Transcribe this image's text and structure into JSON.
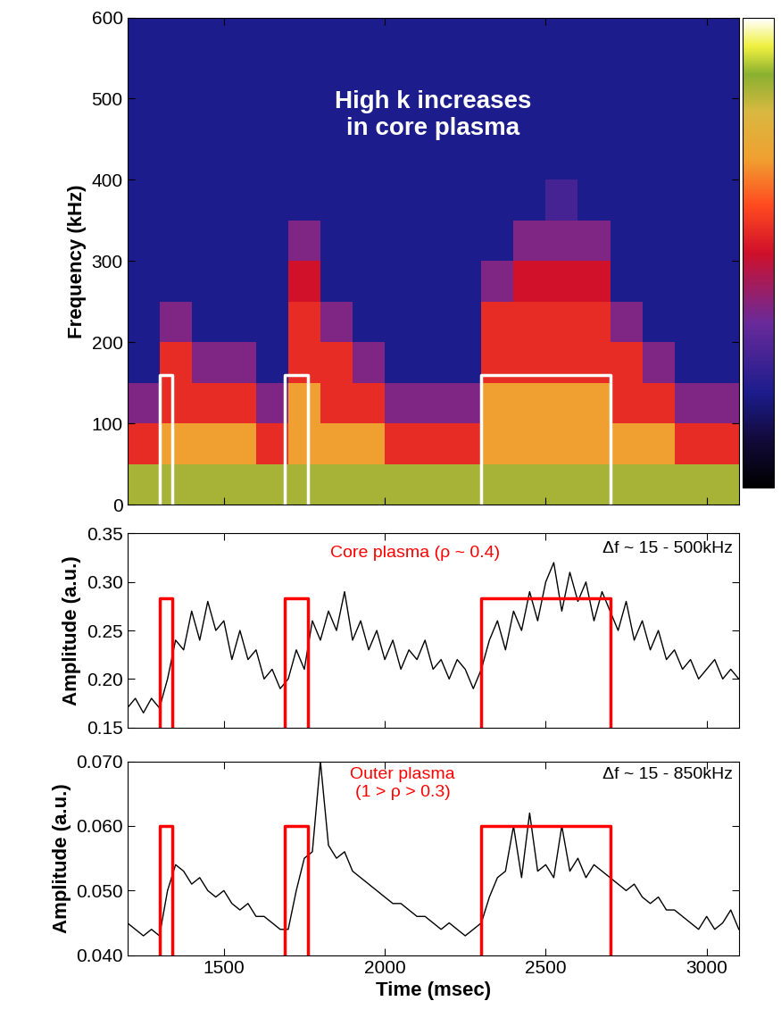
{
  "chart_data": [
    {
      "type": "heatmap",
      "y_label": "Frequency (kHz)",
      "annotation": "High k increases\nin core plasma",
      "x_edges": [
        1200,
        1300,
        1400,
        1500,
        1600,
        1700,
        1800,
        1900,
        2000,
        2100,
        2200,
        2300,
        2400,
        2500,
        2600,
        2700,
        2800,
        2900,
        3000,
        3100
      ],
      "y_edges": [
        0,
        50,
        100,
        150,
        200,
        250,
        300,
        350,
        400,
        450,
        500,
        550,
        600
      ],
      "cells": [
        [
          0.85,
          0.85,
          0.85,
          0.85,
          0.85,
          0.85,
          0.85,
          0.85,
          0.85,
          0.85,
          0.85,
          0.85,
          0.85,
          0.85,
          0.85,
          0.85,
          0.85,
          0.85,
          0.85
        ],
        [
          0.55,
          0.7,
          0.7,
          0.7,
          0.55,
          0.7,
          0.7,
          0.7,
          0.55,
          0.55,
          0.55,
          0.7,
          0.7,
          0.7,
          0.7,
          0.7,
          0.7,
          0.55,
          0.55
        ],
        [
          0.38,
          0.55,
          0.55,
          0.55,
          0.38,
          0.7,
          0.55,
          0.55,
          0.38,
          0.38,
          0.38,
          0.7,
          0.7,
          0.7,
          0.7,
          0.55,
          0.55,
          0.38,
          0.38
        ],
        [
          0.2,
          0.55,
          0.38,
          0.38,
          0.2,
          0.55,
          0.55,
          0.38,
          0.2,
          0.2,
          0.2,
          0.55,
          0.55,
          0.55,
          0.55,
          0.55,
          0.38,
          0.2,
          0.2
        ],
        [
          0.2,
          0.38,
          0.2,
          0.2,
          0.2,
          0.55,
          0.38,
          0.2,
          0.2,
          0.2,
          0.2,
          0.55,
          0.55,
          0.55,
          0.55,
          0.38,
          0.2,
          0.2,
          0.2
        ],
        [
          0.2,
          0.2,
          0.2,
          0.2,
          0.2,
          0.5,
          0.2,
          0.2,
          0.2,
          0.2,
          0.2,
          0.38,
          0.5,
          0.5,
          0.5,
          0.2,
          0.2,
          0.2,
          0.2
        ],
        [
          0.2,
          0.2,
          0.2,
          0.2,
          0.2,
          0.38,
          0.2,
          0.2,
          0.2,
          0.2,
          0.2,
          0.2,
          0.38,
          0.38,
          0.38,
          0.2,
          0.2,
          0.2,
          0.2
        ],
        [
          0.2,
          0.2,
          0.2,
          0.2,
          0.2,
          0.2,
          0.2,
          0.2,
          0.2,
          0.2,
          0.2,
          0.2,
          0.2,
          0.28,
          0.2,
          0.2,
          0.2,
          0.2,
          0.2
        ],
        [
          0.2,
          0.2,
          0.2,
          0.2,
          0.2,
          0.2,
          0.2,
          0.2,
          0.2,
          0.2,
          0.2,
          0.2,
          0.2,
          0.2,
          0.2,
          0.2,
          0.2,
          0.2,
          0.2
        ],
        [
          0.2,
          0.2,
          0.2,
          0.2,
          0.2,
          0.2,
          0.2,
          0.2,
          0.2,
          0.2,
          0.2,
          0.2,
          0.2,
          0.2,
          0.2,
          0.2,
          0.2,
          0.2,
          0.2
        ],
        [
          0.2,
          0.2,
          0.2,
          0.2,
          0.2,
          0.2,
          0.2,
          0.2,
          0.2,
          0.2,
          0.2,
          0.2,
          0.2,
          0.2,
          0.2,
          0.2,
          0.2,
          0.2,
          0.2
        ],
        [
          0.2,
          0.2,
          0.2,
          0.2,
          0.2,
          0.2,
          0.2,
          0.2,
          0.2,
          0.2,
          0.2,
          0.2,
          0.2,
          0.2,
          0.2,
          0.2,
          0.2,
          0.2,
          0.2
        ]
      ],
      "color_range": [
        0,
        1
      ],
      "xlim": [
        1200,
        3100
      ],
      "xticks": [
        1500,
        2000,
        2500,
        3000
      ],
      "ylim": [
        0,
        600
      ],
      "yticks": [
        0,
        100,
        200,
        300,
        400,
        500,
        600
      ],
      "tick_labels": "y",
      "windows": [
        [
          1300,
          1340
        ],
        [
          1690,
          1760
        ],
        [
          2300,
          2700
        ]
      ],
      "window_top": 160
    },
    {
      "type": "line",
      "y_label": "Amplitude (a.u.)",
      "region_label": "Core plasma (ρ ~ 0.4)",
      "band_label": "Δf ~ 15 - 500kHz",
      "color": "#000000",
      "x": [
        1200,
        1225,
        1250,
        1275,
        1300,
        1325,
        1350,
        1375,
        1400,
        1425,
        1450,
        1475,
        1500,
        1525,
        1550,
        1575,
        1600,
        1625,
        1650,
        1675,
        1700,
        1725,
        1750,
        1775,
        1800,
        1825,
        1850,
        1875,
        1900,
        1925,
        1950,
        1975,
        2000,
        2025,
        2050,
        2075,
        2100,
        2125,
        2150,
        2175,
        2200,
        2225,
        2250,
        2275,
        2300,
        2325,
        2350,
        2375,
        2400,
        2425,
        2450,
        2475,
        2500,
        2525,
        2550,
        2575,
        2600,
        2625,
        2650,
        2675,
        2700,
        2725,
        2750,
        2775,
        2800,
        2825,
        2850,
        2875,
        2900,
        2925,
        2950,
        2975,
        3000,
        3025,
        3050,
        3075,
        3100
      ],
      "values": [
        0.17,
        0.18,
        0.165,
        0.18,
        0.17,
        0.2,
        0.24,
        0.23,
        0.27,
        0.24,
        0.28,
        0.25,
        0.26,
        0.22,
        0.25,
        0.22,
        0.23,
        0.2,
        0.21,
        0.19,
        0.2,
        0.23,
        0.21,
        0.26,
        0.24,
        0.27,
        0.25,
        0.29,
        0.24,
        0.26,
        0.23,
        0.25,
        0.22,
        0.24,
        0.21,
        0.23,
        0.22,
        0.24,
        0.21,
        0.22,
        0.2,
        0.22,
        0.21,
        0.19,
        0.21,
        0.24,
        0.26,
        0.23,
        0.27,
        0.25,
        0.29,
        0.26,
        0.3,
        0.32,
        0.27,
        0.31,
        0.28,
        0.3,
        0.26,
        0.29,
        0.27,
        0.25,
        0.28,
        0.24,
        0.26,
        0.23,
        0.25,
        0.22,
        0.23,
        0.21,
        0.22,
        0.2,
        0.21,
        0.22,
        0.2,
        0.21,
        0.2
      ],
      "xlim": [
        1200,
        3100
      ],
      "xticks": [
        1500,
        2000,
        2500,
        3000
      ],
      "ylim": [
        0.15,
        0.35
      ],
      "yticks": [
        {
          "value": 0.15,
          "label": "0.15"
        },
        {
          "value": 0.2,
          "label": "0.20"
        },
        {
          "value": 0.25,
          "label": "0.25"
        },
        {
          "value": 0.3,
          "label": "0.30"
        },
        {
          "value": 0.35,
          "label": "0.35"
        }
      ],
      "tick_labels": "y",
      "windows": [
        [
          1300,
          1340
        ],
        [
          1690,
          1760
        ],
        [
          2300,
          2700
        ]
      ],
      "window_top": 0.283
    },
    {
      "type": "line",
      "y_label": "Amplitude (a.u.)",
      "x_label": "Time (msec)",
      "region_label": "Outer plasma\n(1 > ρ > 0.3)",
      "band_label": "Δf ~ 15 - 850kHz",
      "color": "#000000",
      "x": [
        1200,
        1225,
        1250,
        1275,
        1300,
        1325,
        1350,
        1375,
        1400,
        1425,
        1450,
        1475,
        1500,
        1525,
        1550,
        1575,
        1600,
        1625,
        1650,
        1675,
        1700,
        1725,
        1750,
        1775,
        1800,
        1825,
        1850,
        1875,
        1900,
        1925,
        1950,
        1975,
        2000,
        2025,
        2050,
        2075,
        2100,
        2125,
        2150,
        2175,
        2200,
        2225,
        2250,
        2275,
        2300,
        2325,
        2350,
        2375,
        2400,
        2425,
        2450,
        2475,
        2500,
        2525,
        2550,
        2575,
        2600,
        2625,
        2650,
        2675,
        2700,
        2725,
        2750,
        2775,
        2800,
        2825,
        2850,
        2875,
        2900,
        2925,
        2950,
        2975,
        3000,
        3025,
        3050,
        3075,
        3100
      ],
      "values": [
        0.045,
        0.044,
        0.043,
        0.044,
        0.043,
        0.05,
        0.054,
        0.053,
        0.051,
        0.052,
        0.05,
        0.049,
        0.05,
        0.048,
        0.047,
        0.048,
        0.046,
        0.046,
        0.045,
        0.044,
        0.044,
        0.05,
        0.055,
        0.056,
        0.07,
        0.057,
        0.055,
        0.056,
        0.053,
        0.052,
        0.051,
        0.05,
        0.049,
        0.048,
        0.048,
        0.047,
        0.046,
        0.046,
        0.045,
        0.044,
        0.045,
        0.044,
        0.043,
        0.044,
        0.045,
        0.049,
        0.052,
        0.053,
        0.06,
        0.052,
        0.062,
        0.053,
        0.054,
        0.052,
        0.06,
        0.053,
        0.055,
        0.052,
        0.054,
        0.053,
        0.052,
        0.051,
        0.05,
        0.051,
        0.049,
        0.048,
        0.049,
        0.047,
        0.047,
        0.046,
        0.045,
        0.044,
        0.046,
        0.044,
        0.045,
        0.047,
        0.044
      ],
      "xlim": [
        1200,
        3100
      ],
      "xticks": [
        1500,
        2000,
        2500,
        3000
      ],
      "ylim": [
        0.04,
        0.07
      ],
      "yticks": [
        {
          "value": 0.04,
          "label": "0.040"
        },
        {
          "value": 0.05,
          "label": "0.050"
        },
        {
          "value": 0.06,
          "label": "0.060"
        },
        {
          "value": 0.07,
          "label": "0.070"
        }
      ],
      "windows": [
        [
          1300,
          1340
        ],
        [
          1690,
          1760
        ],
        [
          2300,
          2700
        ]
      ],
      "window_top": 0.06
    }
  ]
}
